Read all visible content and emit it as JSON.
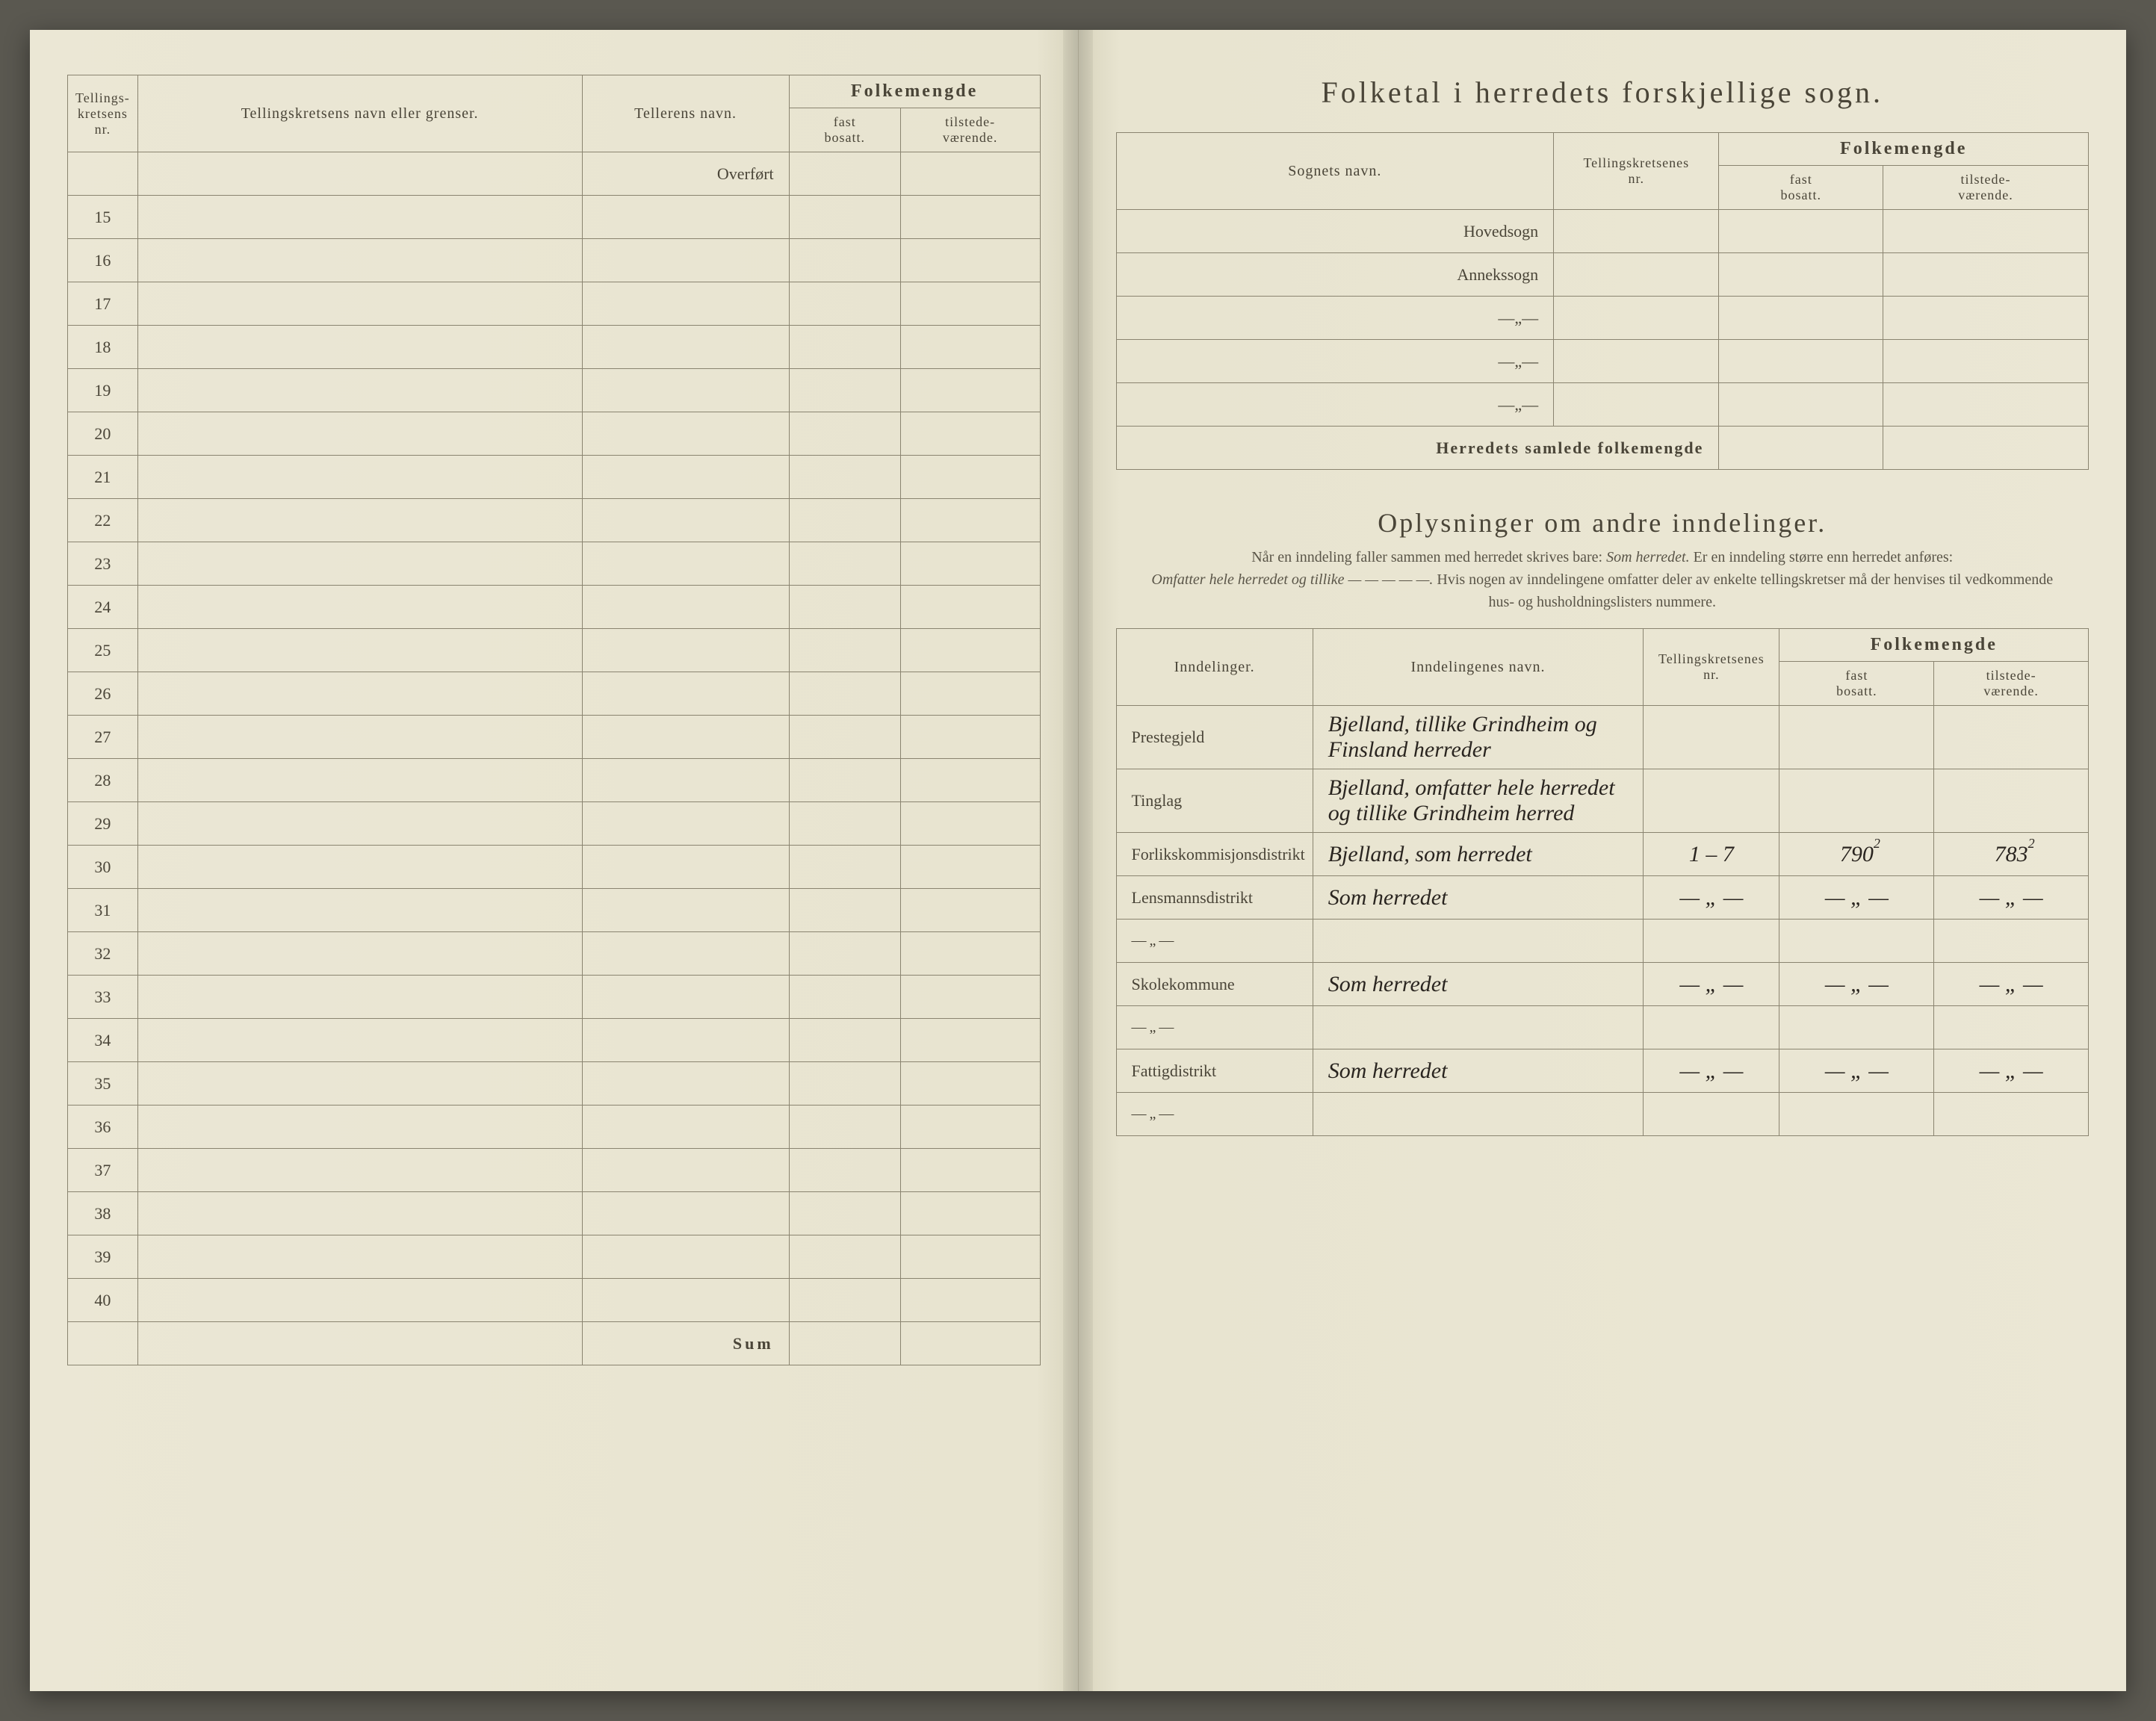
{
  "left": {
    "headers": {
      "c1a": "Tellings-",
      "c1b": "kretsens",
      "c1c": "nr.",
      "c2": "Tellingskretsens navn eller grenser.",
      "c3": "Tellerens navn.",
      "folkemengde": "Folkemengde",
      "fast": "fast",
      "bosatt": "bosatt.",
      "tilstede": "tilstede-",
      "vaerende": "værende."
    },
    "overfort": "Overført",
    "rows": [
      "15",
      "16",
      "17",
      "18",
      "19",
      "20",
      "21",
      "22",
      "23",
      "24",
      "25",
      "26",
      "27",
      "28",
      "29",
      "30",
      "31",
      "32",
      "33",
      "34",
      "35",
      "36",
      "37",
      "38",
      "39",
      "40"
    ],
    "sum": "Sum"
  },
  "right": {
    "title": "Folketal i herredets forskjellige sogn.",
    "headers": {
      "sognets": "Sognets navn.",
      "tka": "Tellingskretsenes",
      "tkb": "nr.",
      "folkemengde": "Folkemengde",
      "fast": "fast",
      "bosatt": "bosatt.",
      "tilstede": "tilstede-",
      "vaerende": "værende."
    },
    "sogn_rows": [
      {
        "label": "Hovedsogn"
      },
      {
        "label": "Annekssogn"
      },
      {
        "label": "—„—"
      },
      {
        "label": "—„—"
      },
      {
        "label": "—„—"
      }
    ],
    "samlede": "Herredets samlede folkemengde",
    "section2_title": "Oplysninger om andre inndelinger.",
    "section2_note_a": "Når en inndeling faller sammen med herredet skrives bare:",
    "section2_note_b": "Som herredet.",
    "section2_note_c": "Er en inndeling større enn herredet anføres:",
    "section2_note_d": "Omfatter hele herredet og tillike — — — — —.",
    "section2_note_e": "Hvis nogen av inndelingene omfatter deler av enkelte tellingskretser må der henvises til vedkommende hus- og husholdningslisters nummere.",
    "inndelinger_headers": {
      "c1": "Inndelinger.",
      "c2": "Inndelingenes navn.",
      "tka": "Tellingskretsenes",
      "tkb": "nr.",
      "folkemengde": "Folkemengde",
      "fast": "fast",
      "bosatt": "bosatt.",
      "tilstede": "tilstede-",
      "vaerende": "værende."
    },
    "inndelinger_rows": [
      {
        "label": "Prestegjeld",
        "hand": "Bjelland, tillike Grindheim og Finsland herreder",
        "tk": "",
        "fb": "",
        "tv": ""
      },
      {
        "label": "Tinglag",
        "hand": "Bjelland, omfatter hele herredet og tillike Grindheim herred",
        "tk": "",
        "fb": "",
        "tv": ""
      },
      {
        "label": "Forlikskommisjonsdistrikt",
        "hand": "Bjelland, som herredet",
        "tk": "1 – 7",
        "fb": "790",
        "tv": "783",
        "sup": "2"
      },
      {
        "label": "Lensmannsdistrikt",
        "hand": "Som herredet",
        "tk": "— „ —",
        "fb": "— „ —",
        "tv": "— „ —"
      },
      {
        "label": "—„—",
        "hand": "",
        "tk": "",
        "fb": "",
        "tv": ""
      },
      {
        "label": "Skolekommune",
        "hand": "Som herredet",
        "tk": "— „ —",
        "fb": "— „ —",
        "tv": "— „ —"
      },
      {
        "label": "—„—",
        "hand": "",
        "tk": "",
        "fb": "",
        "tv": ""
      },
      {
        "label": "Fattigdistrikt",
        "hand": "Som herredet",
        "tk": "— „ —",
        "fb": "— „ —",
        "tv": "— „ —"
      },
      {
        "label": "—„—",
        "hand": "",
        "tk": "",
        "fb": "",
        "tv": ""
      }
    ]
  }
}
